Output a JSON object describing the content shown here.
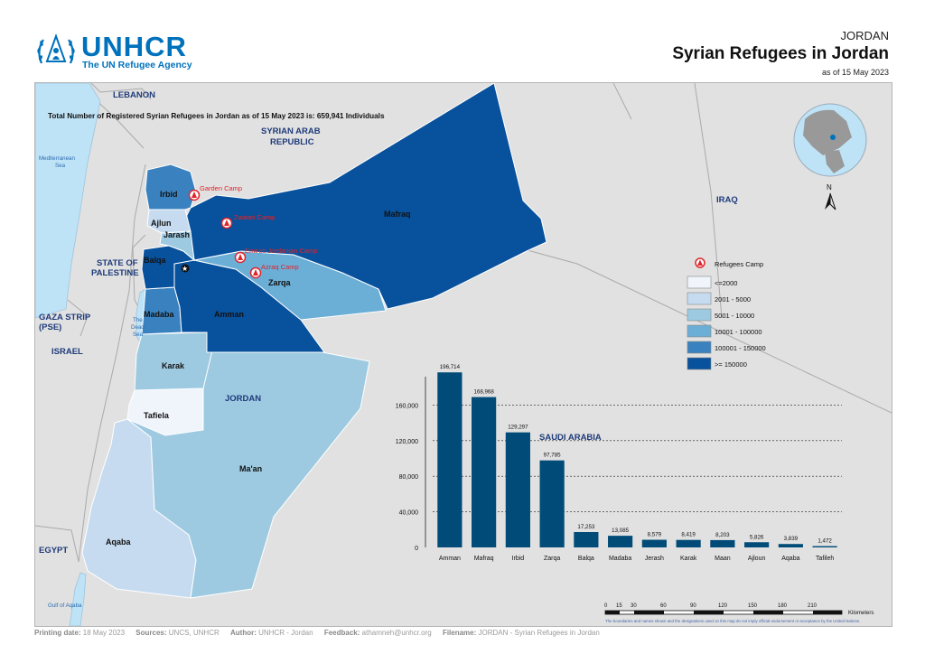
{
  "header": {
    "logo_text": "UNHCR",
    "logo_subtitle": "The UN Refugee Agency",
    "country": "JORDAN",
    "title": "Syrian Refugees in Jordan",
    "date": "as of 15 May 2023"
  },
  "map": {
    "total_text": "Total Number of Registered Syrian Refugees in Jordan as of 15 May 2023 is: 659,941 Individuals",
    "north_label": "N",
    "countries": {
      "lebanon": "LEBANON",
      "syria_1": "SYRIAN ARAB",
      "syria_2": "REPUBLIC",
      "iraq": "IRAQ",
      "palestine_1": "STATE OF",
      "palestine_2": "PALESTINE",
      "gaza_1": "GAZA STRIP",
      "gaza_2": "(PSE)",
      "israel": "ISRAEL",
      "jordan": "JORDAN",
      "saudi": "SAUDI ARABIA",
      "egypt": "EGYPT"
    },
    "water": {
      "med_1": "Mediterranean",
      "med_2": "Sea",
      "dead_1": "The",
      "dead_2": "Dead",
      "dead_3": "Sea",
      "aqaba_gulf": "Gulf of Aqaba"
    },
    "governorates": {
      "irbid": "Irbid",
      "ajlun": "Ajlun",
      "jarash": "Jarash",
      "mafraq": "Mafraq",
      "balqa": "Balqa",
      "zarqa": "Zarqa",
      "madaba": "Madaba",
      "amman": "Amman",
      "karak": "Karak",
      "tafiela": "Tafiela",
      "maan": "Ma'an",
      "aqaba": "Aqaba"
    },
    "camps": {
      "garden": "Garden Camp",
      "zaatari": "Zaatari Camp",
      "emirati": "Emirati Jordanian Camp",
      "azraq": "Azraq Camp"
    },
    "colors": {
      "c1": "#f0f4fb",
      "c2": "#c6dbef",
      "c3": "#9ecae1",
      "c4": "#6baed6",
      "c5": "#3a82bf",
      "c6": "#08519c",
      "neighbor": "#e1e1e1",
      "water": "#bfe3f6"
    },
    "legend": {
      "camp_label": "Refugees Camp",
      "classes": [
        "<=2000",
        "2001 - 5000",
        "5001 - 10000",
        "10001 - 100000",
        "100001 - 150000",
        ">= 150000"
      ]
    },
    "scale": {
      "ticks": [
        "0",
        "15",
        "30",
        "60",
        "90",
        "120",
        "150",
        "180",
        "210"
      ],
      "unit": "Kilometers",
      "disclaimer": "The boundaries and names shown and the designations used on this map do not imply official endorsement or acceptance by the United Nations."
    }
  },
  "chart_data": {
    "type": "bar",
    "categories": [
      "Amman",
      "Mafraq",
      "Irbid",
      "Zarqa",
      "Balqa",
      "Madaba",
      "Jerash",
      "Karak",
      "Maan",
      "Ajloun",
      "Aqaba",
      "Tafileh"
    ],
    "values": [
      196714,
      168968,
      129297,
      97785,
      17253,
      13085,
      8579,
      8419,
      8203,
      5826,
      3839,
      1472
    ],
    "value_labels": [
      "196,714",
      "168,968",
      "129,297",
      "97,785",
      "17,253",
      "13,085",
      "8,579",
      "8,419",
      "8,203",
      "5,826",
      "3,839",
      "1,472"
    ],
    "y_ticks": [
      "0",
      "40,000",
      "80,000",
      "120,000",
      "160,000"
    ],
    "y_tick_values": [
      0,
      40000,
      80000,
      120000,
      160000
    ],
    "ylim": [
      0,
      200000
    ],
    "grid": "dashed horizontal",
    "bar_color": "#004b78"
  },
  "footer": {
    "printing_label": "Printing date:",
    "printing_value": "18 May 2023",
    "sources_label": "Sources:",
    "sources_value": "UNCS, UNHCR",
    "author_label": "Author:",
    "author_value": "UNHCR - Jordan",
    "feedback_label": "Feedback:",
    "feedback_value": "athamneh@unhcr.org",
    "filename_label": "Filename:",
    "filename_value": "JORDAN - Syrian Refugees in Jordan"
  }
}
